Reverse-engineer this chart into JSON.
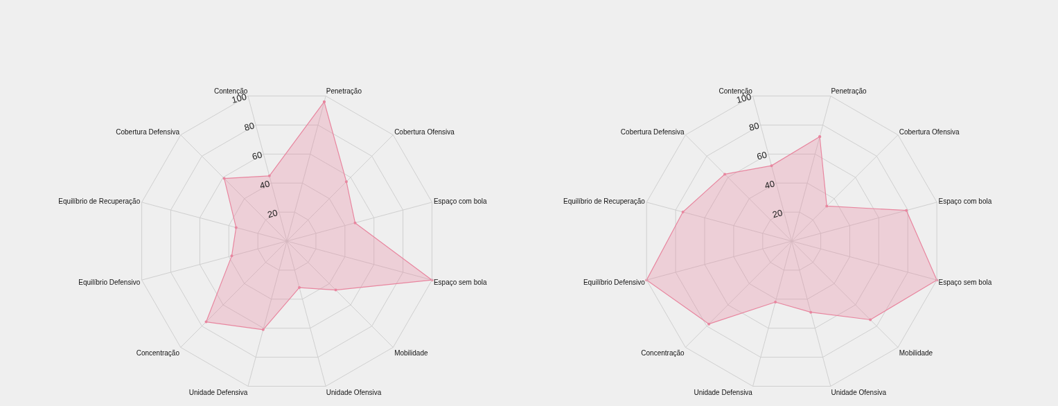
{
  "chart_data": [
    {
      "type": "radar",
      "categories": [
        "Penetração",
        "Cobertura Ofensiva",
        "Espaço com bola",
        "Espaço sem bola",
        "Mobilidade",
        "Unidade Ofensiva",
        "Unidade Defensiva",
        "Concentração",
        "Equilíbrio Defensivo",
        "Equilíbrio de Recuperação",
        "Cobertura Defensiva",
        "Contenção"
      ],
      "series": [
        {
          "color": "#e8869f",
          "values": [
            96,
            56,
            47,
            100,
            46,
            32,
            61,
            76,
            38,
            35,
            59,
            45
          ]
        }
      ],
      "ylim": [
        0,
        100
      ],
      "yticks": [
        20,
        40,
        60,
        80,
        100
      ],
      "grid": true,
      "marker": "circle"
    },
    {
      "type": "radar",
      "categories": [
        "Penetração",
        "Cobertura Ofensiva",
        "Espaço com bola",
        "Espaço sem bola",
        "Mobilidade",
        "Unidade Ofensiva",
        "Unidade Defensiva",
        "Concentração",
        "Equilíbrio Defensivo",
        "Equilíbrio de Recuperação",
        "Cobertura Defensiva",
        "Contenção"
      ],
      "series": [
        {
          "color": "#e8869f",
          "values": [
            72,
            33,
            79,
            100,
            74,
            49,
            42,
            78,
            100,
            75,
            63,
            52
          ]
        }
      ],
      "ylim": [
        0,
        100
      ],
      "yticks": [
        20,
        40,
        60,
        80,
        100
      ],
      "grid": true,
      "marker": "circle"
    }
  ]
}
